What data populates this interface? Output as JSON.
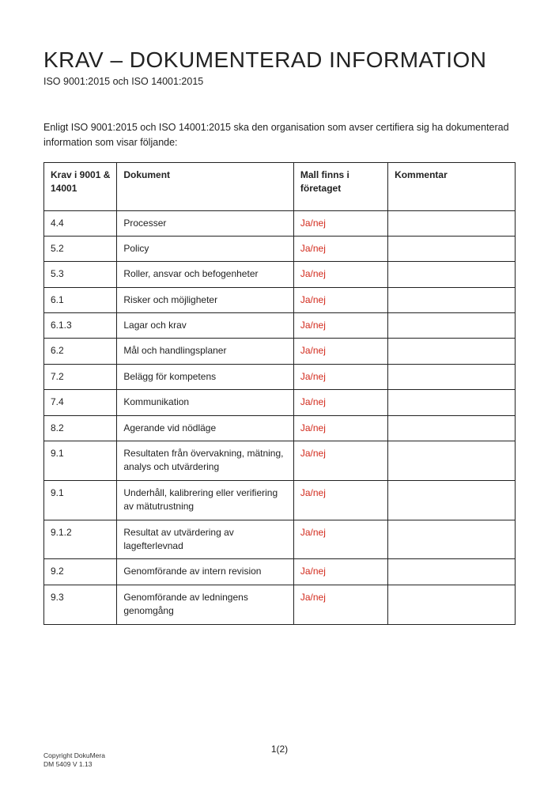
{
  "header": {
    "title": "KRAV – DOKUMENTERAD INFORMATION",
    "subtitle": "ISO 9001:2015 och ISO 14001:2015"
  },
  "intro": "Enligt ISO 9001:2015 och ISO 14001:2015 ska den organisation som avser certifiera sig ha dokumenterad information som visar följande:",
  "table": {
    "columns": [
      "Krav i 9001 & 14001",
      "Dokument",
      "Mall finns i företaget",
      "Kommentar"
    ],
    "column_widths_pct": [
      15.5,
      37.5,
      20,
      27
    ],
    "status_color": "#d22a1c",
    "border_color": "#222222",
    "rows": [
      {
        "req": "4.4",
        "doc": "Processer",
        "status": "Ja/nej",
        "comment": ""
      },
      {
        "req": "5.2",
        "doc": "Policy",
        "status": "Ja/nej",
        "comment": ""
      },
      {
        "req": "5.3",
        "doc": "Roller, ansvar och befogenheter",
        "status": "Ja/nej",
        "comment": ""
      },
      {
        "req": "6.1",
        "doc": "Risker och möjligheter",
        "status": "Ja/nej",
        "comment": ""
      },
      {
        "req": "6.1.3",
        "doc": "Lagar och krav",
        "status": "Ja/nej",
        "comment": ""
      },
      {
        "req": "6.2",
        "doc": "Mål och handlingsplaner",
        "status": "Ja/nej",
        "comment": ""
      },
      {
        "req": "7.2",
        "doc": "Belägg för kompetens",
        "status": "Ja/nej",
        "comment": ""
      },
      {
        "req": "7.4",
        "doc": "Kommunikation",
        "status": "Ja/nej",
        "comment": ""
      },
      {
        "req": "8.2",
        "doc": "Agerande vid nödläge",
        "status": "Ja/nej",
        "comment": ""
      },
      {
        "req": "9.1",
        "doc": "Resultaten från övervakning, mätning, analys och utvärdering",
        "status": "Ja/nej",
        "comment": ""
      },
      {
        "req": "9.1",
        "doc": "Underhåll, kalibrering eller verifiering av mätutrustning",
        "status": "Ja/nej",
        "comment": ""
      },
      {
        "req": "9.1.2",
        "doc": "Resultat av utvärdering av lagefterlevnad",
        "status": "Ja/nej",
        "comment": ""
      },
      {
        "req": "9.2",
        "doc": "Genomförande av intern revision",
        "status": "Ja/nej",
        "comment": ""
      },
      {
        "req": "9.3",
        "doc": "Genomförande av ledningens genomgång",
        "status": "Ja/nej",
        "comment": ""
      }
    ]
  },
  "footer": {
    "page": "1(2)",
    "copyright": "Copyright DokuMera",
    "version": "DM 5409 V 1.13"
  }
}
